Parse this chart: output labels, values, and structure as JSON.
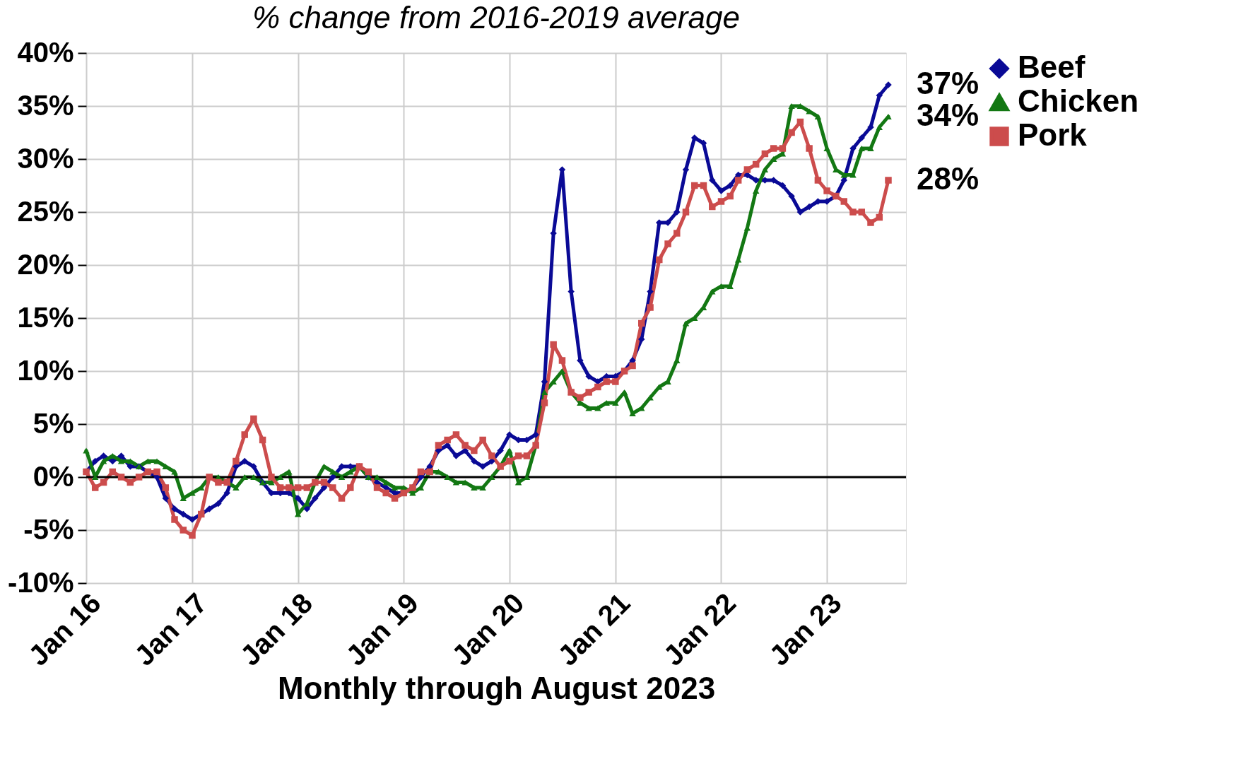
{
  "chart_data": {
    "type": "line",
    "title": "% change from 2016-2019 average",
    "xlabel": "Monthly through August 2023",
    "x": [
      "2016-01",
      "2016-02",
      "2016-03",
      "2016-04",
      "2016-05",
      "2016-06",
      "2016-07",
      "2016-08",
      "2016-09",
      "2016-10",
      "2016-11",
      "2016-12",
      "2017-01",
      "2017-02",
      "2017-03",
      "2017-04",
      "2017-05",
      "2017-06",
      "2017-07",
      "2017-08",
      "2017-09",
      "2017-10",
      "2017-11",
      "2017-12",
      "2018-01",
      "2018-02",
      "2018-03",
      "2018-04",
      "2018-05",
      "2018-06",
      "2018-07",
      "2018-08",
      "2018-09",
      "2018-10",
      "2018-11",
      "2018-12",
      "2019-01",
      "2019-02",
      "2019-03",
      "2019-04",
      "2019-05",
      "2019-06",
      "2019-07",
      "2019-08",
      "2019-09",
      "2019-10",
      "2019-11",
      "2019-12",
      "2020-01",
      "2020-02",
      "2020-03",
      "2020-04",
      "2020-05",
      "2020-06",
      "2020-07",
      "2020-08",
      "2020-09",
      "2020-10",
      "2020-11",
      "2020-12",
      "2021-01",
      "2021-02",
      "2021-03",
      "2021-04",
      "2021-05",
      "2021-06",
      "2021-07",
      "2021-08",
      "2021-09",
      "2021-10",
      "2021-11",
      "2021-12",
      "2022-01",
      "2022-02",
      "2022-03",
      "2022-04",
      "2022-05",
      "2022-06",
      "2022-07",
      "2022-08",
      "2022-09",
      "2022-10",
      "2022-11",
      "2022-12",
      "2023-01",
      "2023-02",
      "2023-03",
      "2023-04",
      "2023-05",
      "2023-06",
      "2023-07",
      "2023-08"
    ],
    "series": [
      {
        "name": "Beef",
        "color": "#0a0a96",
        "marker": "diamond",
        "values": [
          0.5,
          1.5,
          2,
          1.5,
          2,
          1,
          1,
          0.5,
          0,
          -2,
          -3,
          -3.5,
          -4,
          -3.5,
          -3,
          -2.5,
          -1.5,
          1,
          1.5,
          1,
          -0.5,
          -1.5,
          -1.5,
          -1.5,
          -2,
          -3,
          -2,
          -1,
          0,
          1,
          1,
          1,
          0,
          -0.5,
          -1,
          -1.5,
          -1.5,
          -1,
          0,
          1,
          2.5,
          3,
          2,
          2.5,
          1.5,
          1,
          1.5,
          2.5,
          4,
          3.5,
          3.5,
          4,
          9,
          23,
          29,
          17.5,
          11,
          9.5,
          9,
          9.5,
          9.5,
          10,
          11,
          13,
          17.5,
          24,
          24,
          25,
          29,
          32,
          31.5,
          28,
          27,
          27.5,
          28.5,
          28.5,
          28,
          28,
          28,
          27.5,
          26.5,
          25,
          25.5,
          26,
          26,
          26.5,
          28,
          31,
          32,
          33,
          36,
          37
        ]
      },
      {
        "name": "Chicken",
        "color": "#137813",
        "marker": "triangle",
        "values": [
          2.5,
          0,
          1.5,
          2,
          1.5,
          1.5,
          1,
          1.5,
          1.5,
          1,
          0.5,
          -2,
          -1.5,
          -1,
          0,
          0,
          -0.5,
          -1,
          0,
          0,
          -0.5,
          -0.5,
          0,
          0.5,
          -3.5,
          -2.5,
          -0.5,
          1,
          0.5,
          0,
          0.5,
          1,
          0,
          0,
          -0.5,
          -1,
          -1,
          -1.5,
          -1,
          0.5,
          0.5,
          0,
          -0.5,
          -0.5,
          -1,
          -1,
          0,
          1,
          2.5,
          -0.5,
          0,
          3,
          8,
          9,
          10,
          8,
          7,
          6.5,
          6.5,
          7,
          7,
          8,
          6,
          6.5,
          7.5,
          8.5,
          9,
          11,
          14.5,
          15,
          16,
          17.5,
          18,
          18,
          20.5,
          23.5,
          27,
          29,
          30,
          30.5,
          35,
          35,
          34.5,
          34,
          31,
          29,
          28.5,
          28.5,
          31,
          31,
          33,
          34
        ]
      },
      {
        "name": "Pork",
        "color": "#cc4c4c",
        "marker": "square",
        "values": [
          0.5,
          -1,
          -0.5,
          0.5,
          0,
          -0.5,
          0,
          0.5,
          0.5,
          -1,
          -4,
          -5,
          -5.5,
          -3.5,
          0,
          -0.5,
          -0.5,
          1.5,
          4,
          5.5,
          3.5,
          0,
          -1,
          -1,
          -1,
          -1,
          -0.5,
          -0.5,
          -1,
          -2,
          -1,
          1,
          0.5,
          -1,
          -1.5,
          -2,
          -1.5,
          -1,
          0.5,
          0.5,
          3,
          3.5,
          4,
          3,
          2.5,
          3.5,
          2,
          1,
          1.5,
          2,
          2,
          3,
          7,
          12.5,
          11,
          8,
          7.5,
          8,
          8.5,
          9,
          9,
          10,
          10.5,
          14.5,
          16,
          20.5,
          22,
          23,
          25,
          27.5,
          27.5,
          25.5,
          26,
          26.5,
          28,
          29,
          29.5,
          30.5,
          31,
          31,
          32.5,
          33.5,
          31,
          28,
          27,
          26.5,
          26,
          25,
          25,
          24,
          24.5,
          28
        ]
      }
    ],
    "xlim": [
      "2016-01",
      "2023-10"
    ],
    "xticks": [
      {
        "value": "2016-01",
        "label": "Jan 16"
      },
      {
        "value": "2017-01",
        "label": "Jan 17"
      },
      {
        "value": "2018-01",
        "label": "Jan 18"
      },
      {
        "value": "2019-01",
        "label": "Jan 19"
      },
      {
        "value": "2020-01",
        "label": "Jan 20"
      },
      {
        "value": "2021-01",
        "label": "Jan 21"
      },
      {
        "value": "2022-01",
        "label": "Jan 22"
      },
      {
        "value": "2023-01",
        "label": "Jan 23"
      }
    ],
    "ylim": [
      -10,
      40
    ],
    "yticks": [
      {
        "value": -10,
        "label": "-10%"
      },
      {
        "value": -5,
        "label": "-5%"
      },
      {
        "value": 0,
        "label": "0%"
      },
      {
        "value": 5,
        "label": "5%"
      },
      {
        "value": 10,
        "label": "10%"
      },
      {
        "value": 15,
        "label": "15%"
      },
      {
        "value": 20,
        "label": "20%"
      },
      {
        "value": 25,
        "label": "25%"
      },
      {
        "value": 30,
        "label": "30%"
      },
      {
        "value": 35,
        "label": "35%"
      },
      {
        "value": 40,
        "label": "40%"
      }
    ],
    "ref_lines": [
      {
        "axis": "y",
        "value": 0,
        "color": "#000000"
      }
    ],
    "annotations": [
      {
        "text": "37%",
        "x": "2023-08",
        "y": 37
      },
      {
        "text": "34%",
        "x": "2023-08",
        "y": 34
      },
      {
        "text": "28%",
        "x": "2023-08",
        "y": 28
      }
    ],
    "grid": true,
    "legend": "right",
    "line_style": "solid"
  }
}
